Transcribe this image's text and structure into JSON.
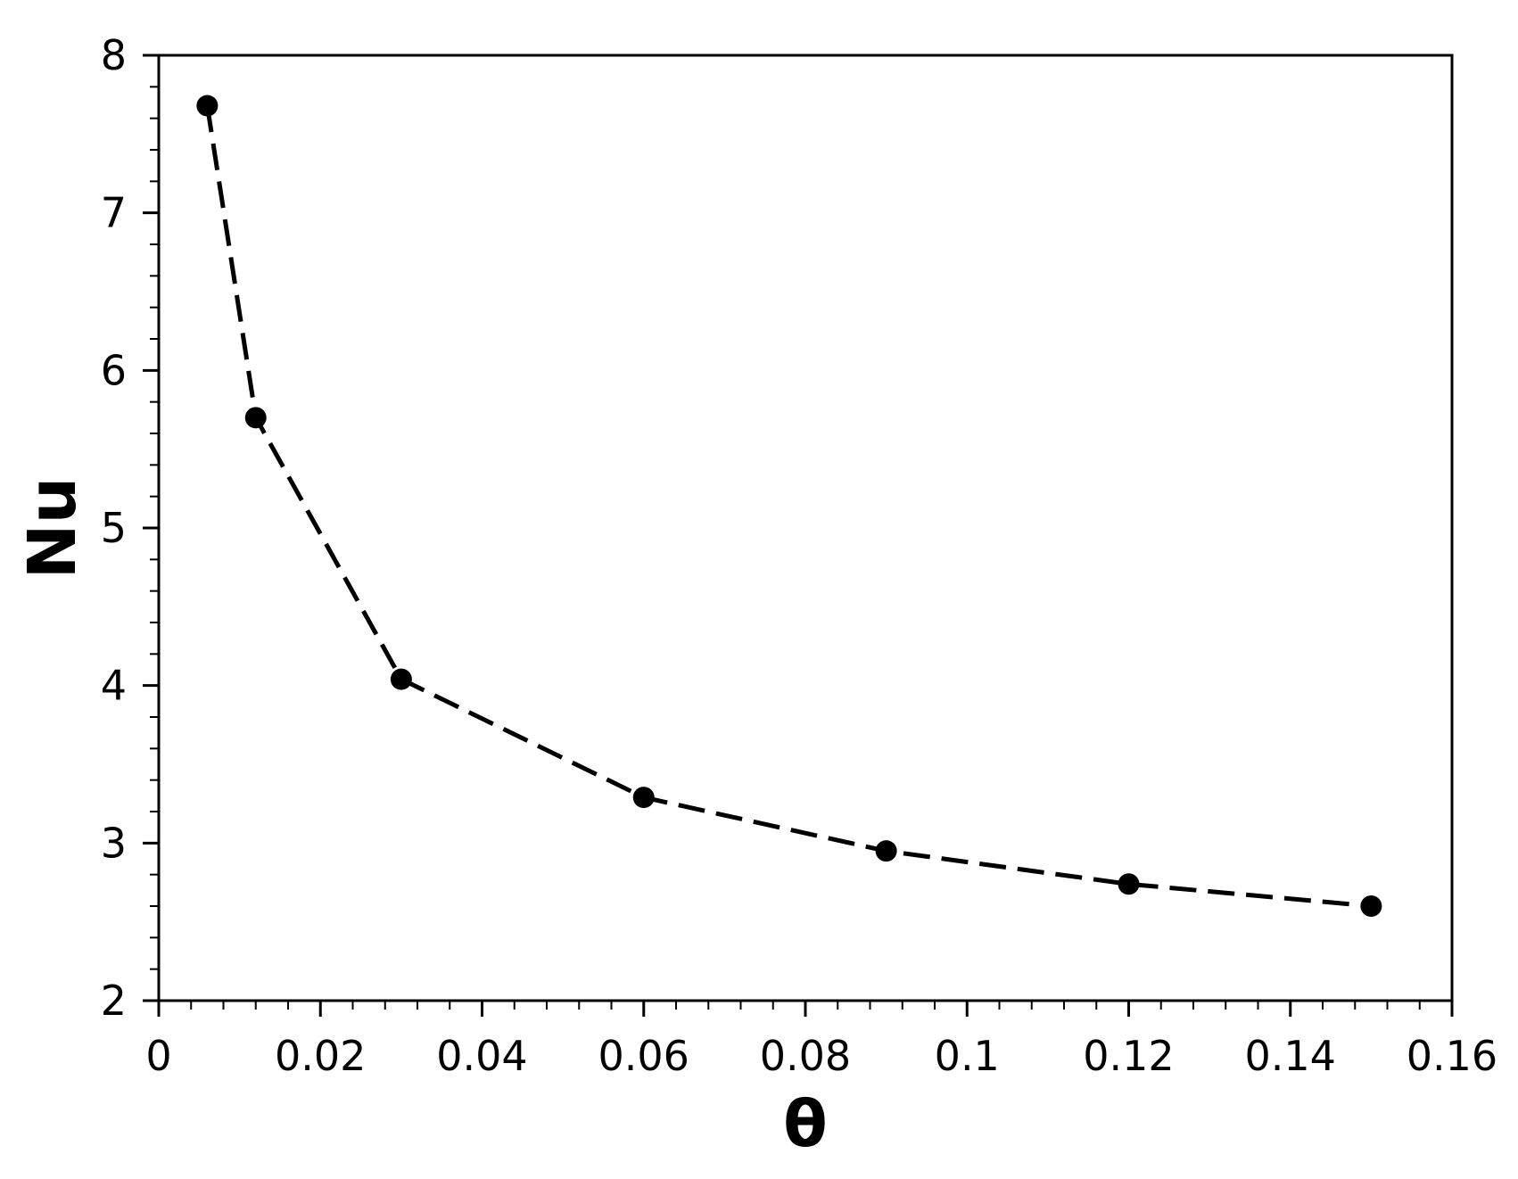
{
  "chart_data": {
    "type": "line",
    "title": "",
    "xlabel": "θ",
    "ylabel": "Nu",
    "xlim": [
      0,
      0.16
    ],
    "ylim": [
      2,
      8
    ],
    "grid": false,
    "legend": "none",
    "x_ticks": [
      0,
      0.02,
      0.04,
      0.06,
      0.08,
      0.1,
      0.12,
      0.14,
      0.16
    ],
    "x_tick_labels": [
      "0",
      "0.02",
      "0.04",
      "0.06",
      "0.08",
      "0.1",
      "0.12",
      "0.14",
      "0.16"
    ],
    "y_ticks": [
      2,
      3,
      4,
      5,
      6,
      7,
      8
    ],
    "y_tick_labels": [
      "2",
      "3",
      "4",
      "5",
      "6",
      "7",
      "8"
    ],
    "series": [
      {
        "x": [
          0.006,
          0.012,
          0.03,
          0.06,
          0.09,
          0.12,
          0.15
        ],
        "values": [
          7.68,
          5.7,
          4.04,
          3.29,
          2.95,
          2.74,
          2.6
        ],
        "line_style": "dashed",
        "marker": "circle",
        "color": "#000000"
      }
    ]
  }
}
